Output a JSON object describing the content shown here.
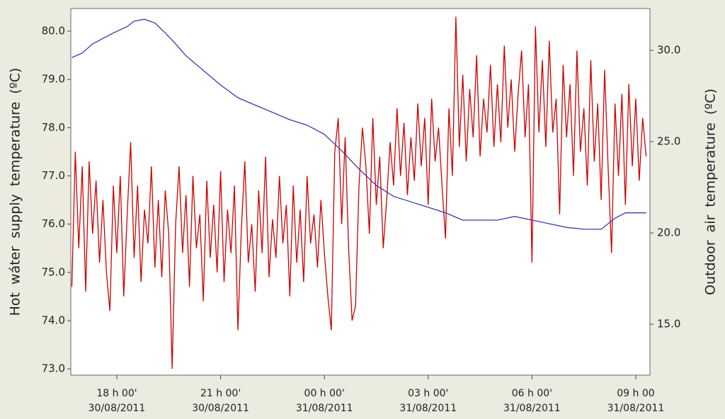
{
  "chart_data": {
    "type": "line",
    "y_label": "Hot wáter supply temperature (ºC)",
    "y2_label": "Outdoor air temperature (ºC)",
    "xlim": [
      16.67,
      33.41
    ],
    "ylim": [
      72.87,
      80.47
    ],
    "y2lim": [
      12.21,
      32.29
    ],
    "xticks": [
      {
        "value": 18,
        "label": "18 h 00'",
        "date": "30/08/2011"
      },
      {
        "value": 21,
        "label": "21 h 00'",
        "date": "30/08/2011"
      },
      {
        "value": 24,
        "label": "00 h 00'",
        "date": "31/08/2011"
      },
      {
        "value": 27,
        "label": "03 h 00'",
        "date": "31/08/2011"
      },
      {
        "value": 30,
        "label": "06 h 00'",
        "date": "31/08/2011"
      },
      {
        "value": 33,
        "label": "09 h 00",
        "date": "31/08/2011"
      }
    ],
    "yticks": [
      {
        "value": 73,
        "label": "73.0"
      },
      {
        "value": 74,
        "label": "74.0"
      },
      {
        "value": 75,
        "label": "75.0"
      },
      {
        "value": 76,
        "label": "76.0"
      },
      {
        "value": 77,
        "label": "77.0"
      },
      {
        "value": 78,
        "label": "78.0"
      },
      {
        "value": 79,
        "label": "79.0"
      },
      {
        "value": 80,
        "label": "80.0"
      }
    ],
    "y2ticks": [
      {
        "value": 15,
        "label": "15.0"
      },
      {
        "value": 20,
        "label": "20.0"
      },
      {
        "value": 25,
        "label": "25.0"
      },
      {
        "value": 30,
        "label": "30.0"
      }
    ],
    "series": [
      {
        "color": "#cc0000",
        "x": [
          16.7,
          16.8,
          16.9,
          17.0,
          17.1,
          17.2,
          17.3,
          17.4,
          17.5,
          17.6,
          17.7,
          17.8,
          17.9,
          18.0,
          18.1,
          18.2,
          18.3,
          18.4,
          18.5,
          18.6,
          18.7,
          18.8,
          18.9,
          19.0,
          19.1,
          19.2,
          19.3,
          19.4,
          19.5,
          19.6,
          19.7,
          19.8,
          19.9,
          20.0,
          20.1,
          20.2,
          20.3,
          20.4,
          20.5,
          20.6,
          20.7,
          20.8,
          20.9,
          21.0,
          21.1,
          21.2,
          21.3,
          21.4,
          21.5,
          21.6,
          21.7,
          21.8,
          21.9,
          22.0,
          22.1,
          22.2,
          22.3,
          22.4,
          22.5,
          22.6,
          22.7,
          22.8,
          22.9,
          23.0,
          23.1,
          23.2,
          23.3,
          23.4,
          23.5,
          23.6,
          23.7,
          23.8,
          23.9,
          24.0,
          24.1,
          24.2,
          24.3,
          24.4,
          24.5,
          24.6,
          24.7,
          24.8,
          24.9,
          25.0,
          25.1,
          25.2,
          25.3,
          25.4,
          25.5,
          25.6,
          25.7,
          25.8,
          25.9,
          26.0,
          26.1,
          26.2,
          26.3,
          26.4,
          26.5,
          26.6,
          26.7,
          26.8,
          26.9,
          27.0,
          27.1,
          27.2,
          27.3,
          27.4,
          27.5,
          27.6,
          27.7,
          27.8,
          27.9,
          28.0,
          28.1,
          28.2,
          28.3,
          28.4,
          28.5,
          28.6,
          28.7,
          28.8,
          28.9,
          29.0,
          29.1,
          29.2,
          29.3,
          29.4,
          29.5,
          29.6,
          29.7,
          29.8,
          29.9,
          30.0,
          30.1,
          30.2,
          30.3,
          30.4,
          30.5,
          30.6,
          30.7,
          30.8,
          30.9,
          31.0,
          31.1,
          31.2,
          31.3,
          31.4,
          31.5,
          31.6,
          31.7,
          31.8,
          31.9,
          32.0,
          32.1,
          32.2,
          32.3,
          32.4,
          32.5,
          32.6,
          32.7,
          32.8,
          32.9,
          33.0,
          33.1,
          33.2,
          33.3
        ],
        "values": [
          74.7,
          77.5,
          75.5,
          77.2,
          74.6,
          77.3,
          75.8,
          76.9,
          75.2,
          76.5,
          75.0,
          74.2,
          76.8,
          75.4,
          77.0,
          74.5,
          76.2,
          77.7,
          75.3,
          76.8,
          74.8,
          76.3,
          75.6,
          77.2,
          75.1,
          76.5,
          74.9,
          76.7,
          75.8,
          73.0,
          76.0,
          77.2,
          75.4,
          76.6,
          74.7,
          77.0,
          75.5,
          76.2,
          74.4,
          76.9,
          75.3,
          76.4,
          75.0,
          77.1,
          74.8,
          76.3,
          75.4,
          76.8,
          73.8,
          75.9,
          77.3,
          75.2,
          76.0,
          74.6,
          76.7,
          75.4,
          77.4,
          74.9,
          76.1,
          75.3,
          77.0,
          75.6,
          76.4,
          74.5,
          76.8,
          75.2,
          76.3,
          74.8,
          77.0,
          75.6,
          76.2,
          75.1,
          76.5,
          75.4,
          74.5,
          73.8,
          77.5,
          78.2,
          76.0,
          77.8,
          75.5,
          74.0,
          74.3,
          76.8,
          78.0,
          77.2,
          75.8,
          78.2,
          76.4,
          77.4,
          75.5,
          76.5,
          77.7,
          76.8,
          78.4,
          77.0,
          78.1,
          76.6,
          77.8,
          76.9,
          78.5,
          77.2,
          78.2,
          76.4,
          78.6,
          77.3,
          78.0,
          76.8,
          75.7,
          78.4,
          77.0,
          80.3,
          77.6,
          79.1,
          77.3,
          78.8,
          77.8,
          79.5,
          77.4,
          78.6,
          77.9,
          79.3,
          77.6,
          78.9,
          77.7,
          79.7,
          78.0,
          79.0,
          77.5,
          78.7,
          79.6,
          77.8,
          78.9,
          75.2,
          80.1,
          77.9,
          79.4,
          77.6,
          79.8,
          77.9,
          78.6,
          76.2,
          79.3,
          77.8,
          78.9,
          77.0,
          79.6,
          77.5,
          78.4,
          76.8,
          79.4,
          77.3,
          78.5,
          76.5,
          79.2,
          77.2,
          75.4,
          78.5,
          77.0,
          78.7,
          76.4,
          78.9,
          77.2,
          78.6,
          76.9,
          78.2,
          77.4
        ]
      },
      {
        "color": "#3a3aa8",
        "axis": "y2",
        "x": [
          16.7,
          17.0,
          17.3,
          17.6,
          17.9,
          18.3,
          18.5,
          18.8,
          19.1,
          19.4,
          19.7,
          20.0,
          20.5,
          21.0,
          21.5,
          22.0,
          22.5,
          23.0,
          23.5,
          24.0,
          24.5,
          25.0,
          25.5,
          26.0,
          26.5,
          27.0,
          27.5,
          28.0,
          29.0,
          29.5,
          30.0,
          30.5,
          31.0,
          31.5,
          32.0,
          32.4,
          32.7,
          33.3
        ],
        "values": [
          29.6,
          29.85,
          30.35,
          30.65,
          30.95,
          31.3,
          31.6,
          31.7,
          31.5,
          30.95,
          30.35,
          29.7,
          28.9,
          28.1,
          27.4,
          27.0,
          26.6,
          26.2,
          25.9,
          25.4,
          24.5,
          23.5,
          22.6,
          22.0,
          21.7,
          21.4,
          21.1,
          20.7,
          20.7,
          20.9,
          20.7,
          20.5,
          20.3,
          20.2,
          20.2,
          20.8,
          21.1,
          21.1
        ]
      }
    ]
  }
}
